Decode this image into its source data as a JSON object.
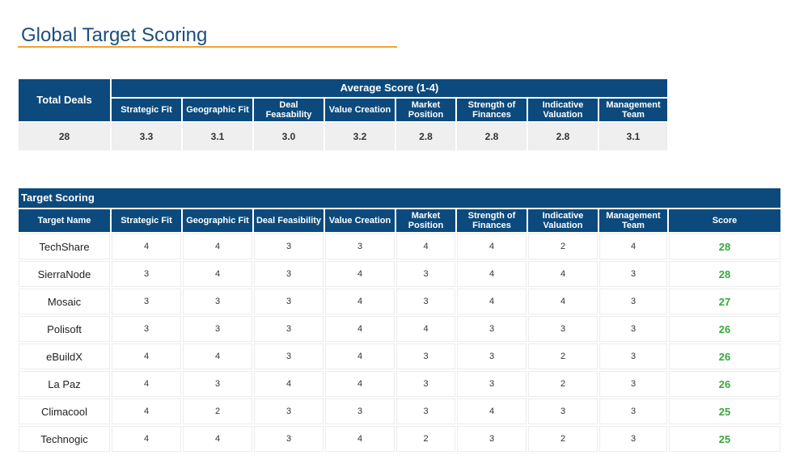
{
  "page": {
    "title": "Global Target Scoring"
  },
  "summary": {
    "total_deals_label": "Total Deals",
    "average_label": "Average Score (1-4)",
    "criteria": [
      "Strategic Fit",
      "Geographic Fit",
      "Deal Feasability",
      "Value Creation",
      "Market Position",
      "Strength of Finances",
      "Indicative Valuation",
      "Management Team"
    ],
    "total_deals_value": "28",
    "averages": [
      "3.3",
      "3.1",
      "3.0",
      "3.2",
      "2.8",
      "2.8",
      "2.8",
      "3.1"
    ]
  },
  "scoring": {
    "title": "Target Scoring",
    "columns": [
      "Target Name",
      "Strategic Fit",
      "Geographic Fit",
      "Deal Feasibility",
      "Value Creation",
      "Market Position",
      "Strength of Finances",
      "Indicative Valuation",
      "Management Team",
      "Score"
    ],
    "rows": [
      {
        "name": "TechShare",
        "scores": [
          "4",
          "4",
          "3",
          "3",
          "4",
          "4",
          "2",
          "4"
        ],
        "total": "28"
      },
      {
        "name": "SierraNode",
        "scores": [
          "3",
          "4",
          "3",
          "4",
          "3",
          "4",
          "4",
          "3"
        ],
        "total": "28"
      },
      {
        "name": "Mosaic",
        "scores": [
          "3",
          "3",
          "3",
          "4",
          "3",
          "4",
          "4",
          "3"
        ],
        "total": "27"
      },
      {
        "name": "Polisoft",
        "scores": [
          "3",
          "3",
          "3",
          "4",
          "4",
          "3",
          "3",
          "3"
        ],
        "total": "26"
      },
      {
        "name": "eBuildX",
        "scores": [
          "4",
          "4",
          "3",
          "4",
          "3",
          "3",
          "2",
          "3"
        ],
        "total": "26"
      },
      {
        "name": "La Paz",
        "scores": [
          "4",
          "3",
          "4",
          "4",
          "3",
          "3",
          "2",
          "3"
        ],
        "total": "26"
      },
      {
        "name": "Climacool",
        "scores": [
          "4",
          "2",
          "3",
          "3",
          "3",
          "4",
          "3",
          "3"
        ],
        "total": "25"
      },
      {
        "name": "Technogic",
        "scores": [
          "4",
          "4",
          "3",
          "4",
          "2",
          "3",
          "2",
          "3"
        ],
        "total": "25"
      }
    ]
  },
  "colors": {
    "header": "#0c4a7d",
    "title": "#1b4f7c",
    "rule": "#f0a133",
    "score": "#3aa63c"
  }
}
